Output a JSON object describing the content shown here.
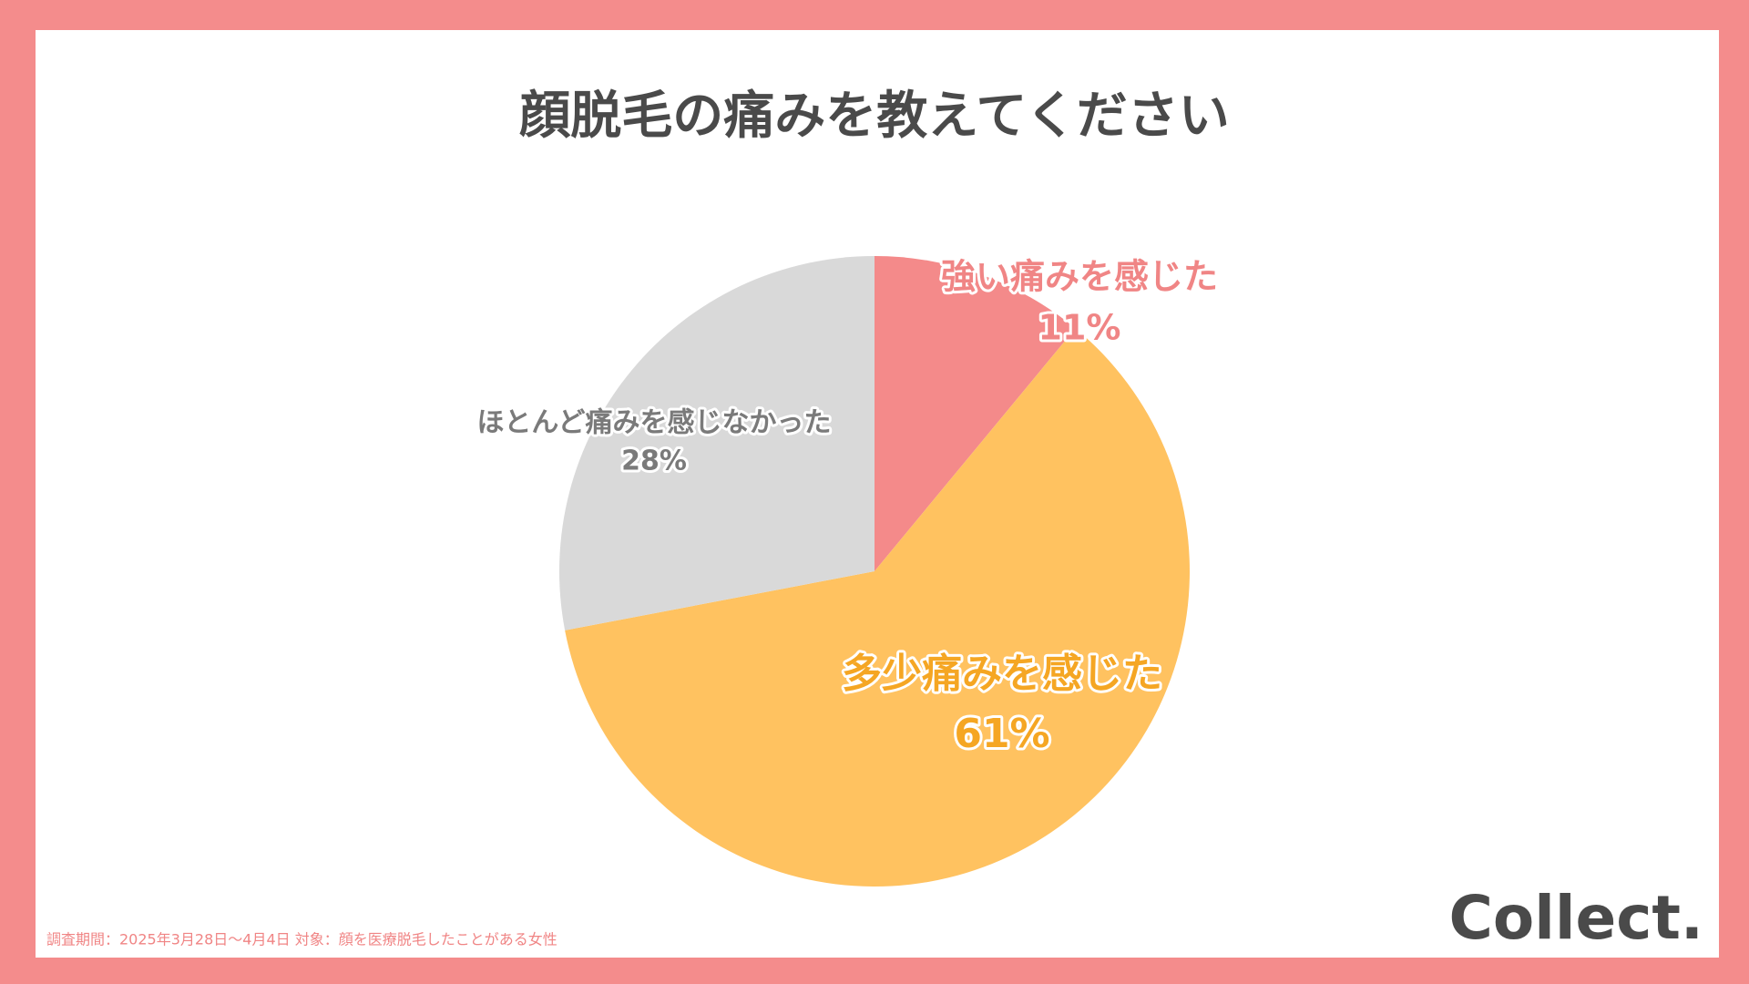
{
  "chart_data": {
    "type": "pie",
    "title": "顔脱毛の痛みを教えてください",
    "categories": [
      "強い痛みを感じた",
      "多少痛みを感じた",
      "ほとんど痛みを感じなかった"
    ],
    "values": [
      11,
      61,
      28
    ],
    "value_labels": [
      "11%",
      "61%",
      "28%"
    ],
    "colors": [
      "#f48a8a",
      "#ffc260",
      "#d9d9d9"
    ],
    "label_colors": [
      "#f08585",
      "#f5a623",
      "#7a7a7a"
    ],
    "note": "調査期間：2025年3月28日〜4月4日  対象：顔を医療脱毛したことがある女性",
    "brand": "Collect."
  }
}
